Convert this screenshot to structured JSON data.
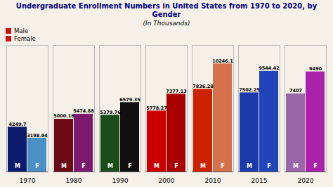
{
  "chart_data": {
    "type": "bar",
    "title": "Undergraduate Enrollment Numbers in United States from 1970 to 2020, by Gender",
    "subtitle": "(In Thousands)",
    "categories": [
      "1970",
      "1980",
      "1990",
      "2000",
      "2010",
      "2015",
      "2020"
    ],
    "series": [
      {
        "name": "Male",
        "short_name": "M",
        "color": "#cc1111",
        "colors": [
          "#0d1b6e",
          "#6b0a14",
          "#1a4d1a",
          "#cc0000",
          "#cc2200",
          "#1a3aaa",
          "#9966aa"
        ],
        "values": [
          4249.7,
          5000.18,
          5379.76,
          5778.27,
          7836.28,
          7502.25,
          7407
        ]
      },
      {
        "name": "Female",
        "short_name": "F",
        "color": "#cc1111",
        "colors": [
          "#4a90c4",
          "#7b1a6e",
          "#111111",
          "#aa0000",
          "#d4704a",
          "#2244bb",
          "#aa22aa"
        ],
        "values": [
          3198.94,
          5474.88,
          6579.35,
          7377.13,
          10246.15,
          9544.42,
          9490
        ],
        "value_labels": [
          "3198.94",
          "5474.88",
          "6579.35",
          "7377.13",
          "10246.1",
          "9544.42",
          "9490"
        ]
      }
    ],
    "ylim": [
      0,
      12000
    ],
    "tick_labels": "x",
    "data_labels": true,
    "legend": "upper left",
    "grid": false
  }
}
